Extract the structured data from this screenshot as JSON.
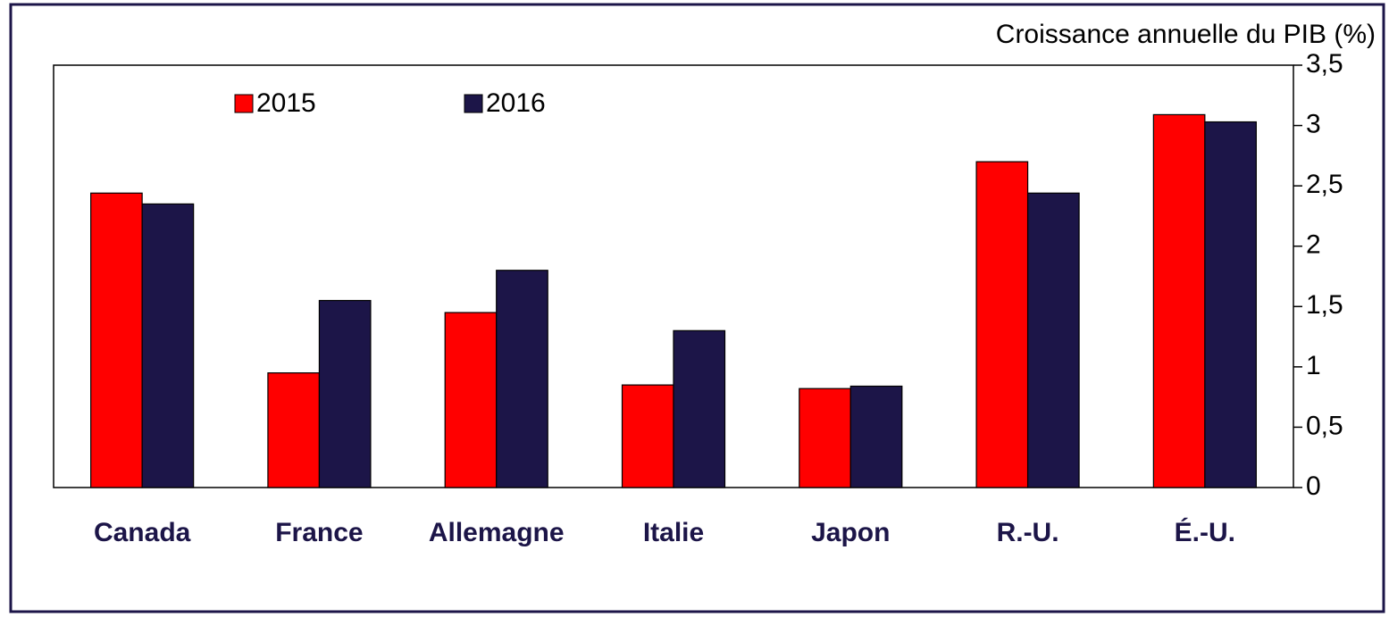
{
  "chart_data": {
    "type": "bar",
    "y_axis_label": "Croissance annuelle du PIB (%)",
    "categories": [
      "Canada",
      "France",
      "Allemagne",
      "Italie",
      "Japon",
      "R.-U.",
      "É.-U."
    ],
    "series": [
      {
        "name": "2015",
        "color": "#ff0000",
        "values": [
          2.44,
          0.95,
          1.45,
          0.85,
          0.82,
          2.7,
          3.09
        ]
      },
      {
        "name": "2016",
        "color": "#1c1548",
        "values": [
          2.35,
          1.55,
          1.8,
          1.3,
          0.84,
          2.44,
          3.03
        ]
      }
    ],
    "ylim": [
      0,
      3.5
    ],
    "yticks": [
      0,
      {
        "value": 0.5,
        "label": "0,5"
      },
      1,
      {
        "value": 1.5,
        "label": "1,5"
      },
      2,
      {
        "value": 2.5,
        "label": "2,5"
      },
      3,
      {
        "value": 3.5,
        "label": "3,5"
      }
    ],
    "y_axis_side": "right",
    "grid": false,
    "legend": "top-left"
  }
}
